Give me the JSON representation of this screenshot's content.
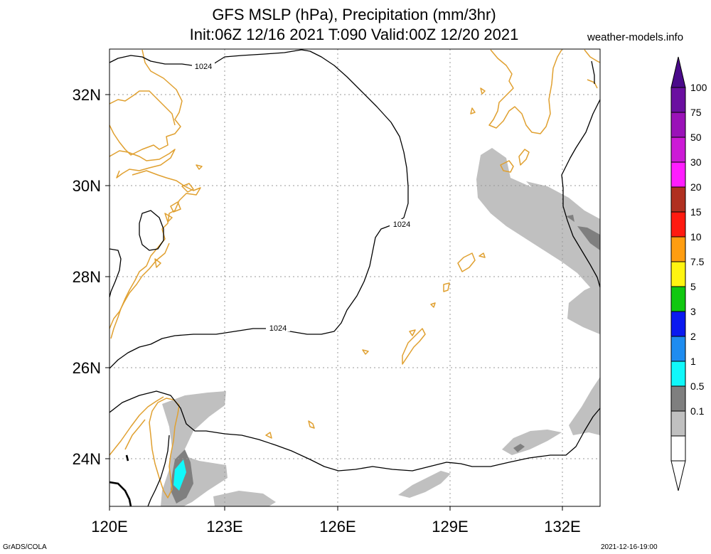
{
  "title_line1": "GFS MSLP (hPa), Precipitation (mm/3hr)",
  "title_line2": "Init:06Z 12/16 2021 T:090 Valid:00Z 12/20 2021",
  "source_label": "weather-models.info",
  "footer_left": "GrADS/COLA",
  "footer_right": "2021-12-16-19:00",
  "axes": {
    "lon_labels": [
      "120E",
      "123E",
      "126E",
      "129E",
      "132E"
    ],
    "lat_labels": [
      "32N",
      "30N",
      "28N",
      "26N",
      "24N"
    ]
  },
  "isobar_labels": [
    "1024",
    "1024",
    "1024"
  ],
  "legend": {
    "labels": [
      "100",
      "75",
      "50",
      "30",
      "20",
      "15",
      "10",
      "7.5",
      "5",
      "3",
      "2",
      "1",
      "0.5",
      "0.1"
    ],
    "colors": [
      "#6a0fa0",
      "#9a12b8",
      "#cc1ad6",
      "#ff1dff",
      "#b03020",
      "#ff1a10",
      "#ff9d10",
      "#fff510",
      "#10c810",
      "#0a19f0",
      "#1e8cf0",
      "#10f8fa",
      "#7f7f7f",
      "#c0c0c0",
      "#ffffff"
    ]
  },
  "colors": {
    "coastline": "#e0a030",
    "isobar": "#000000",
    "grid": "#999999",
    "precip_light": "#c0c0c0",
    "precip_mid": "#7f7f7f",
    "precip_cyan": "#10f8fa"
  }
}
